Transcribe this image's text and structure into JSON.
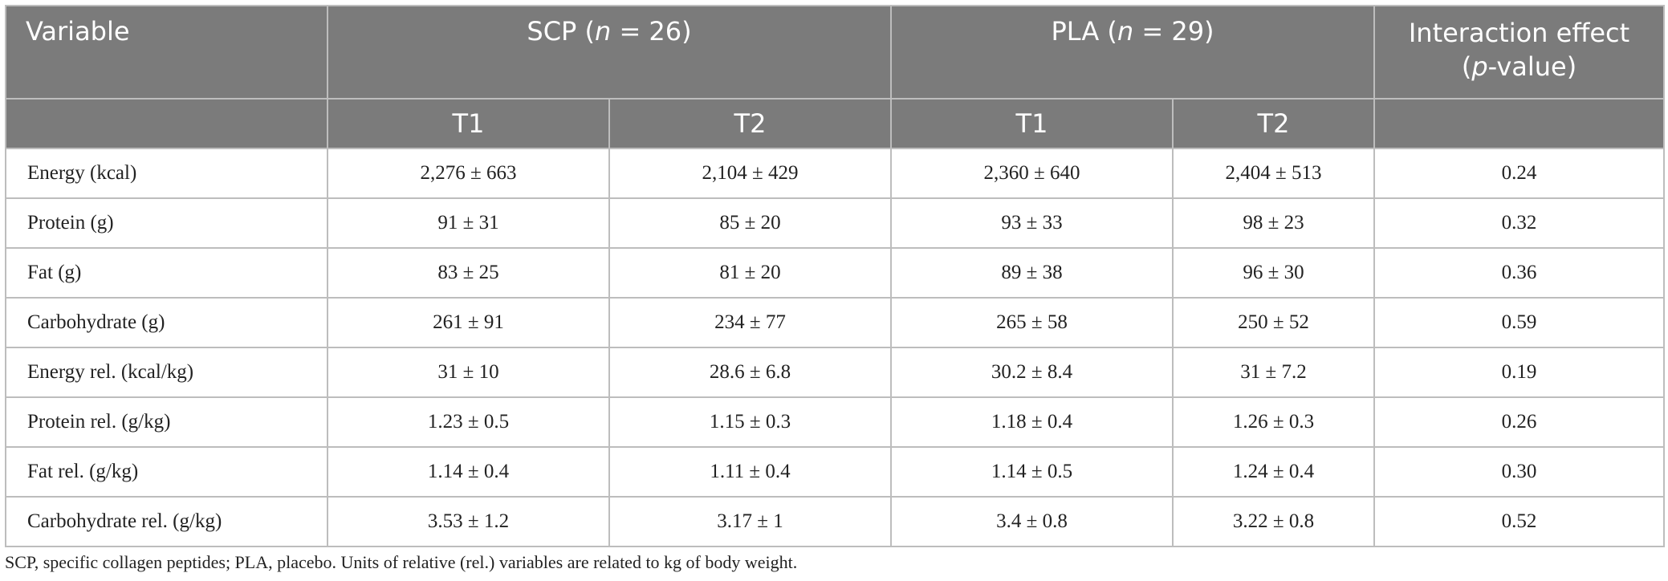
{
  "table": {
    "header": {
      "variable": "Variable",
      "scp_group": "SCP (n = 26)",
      "pla_group": "PLA (n = 29)",
      "interaction_line1": "Interaction effect",
      "interaction_line2": "(p-value)",
      "timepoints": [
        "T1",
        "T2",
        "T1",
        "T2"
      ]
    },
    "rows": [
      {
        "variable": "Energy (kcal)",
        "scp_t1": "2,276 ± 663",
        "scp_t2": "2,104 ± 429",
        "pla_t1": "2,360 ± 640",
        "pla_t2": "2,404 ± 513",
        "p": "0.24"
      },
      {
        "variable": "Protein (g)",
        "scp_t1": "91 ± 31",
        "scp_t2": "85 ± 20",
        "pla_t1": "93 ± 33",
        "pla_t2": "98 ± 23",
        "p": "0.32"
      },
      {
        "variable": "Fat (g)",
        "scp_t1": "83 ± 25",
        "scp_t2": "81 ± 20",
        "pla_t1": "89 ± 38",
        "pla_t2": "96 ± 30",
        "p": "0.36"
      },
      {
        "variable": "Carbohydrate (g)",
        "scp_t1": "261 ± 91",
        "scp_t2": "234 ± 77",
        "pla_t1": "265 ± 58",
        "pla_t2": "250 ± 52",
        "p": "0.59"
      },
      {
        "variable": "Energy rel. (kcal/kg)",
        "scp_t1": "31 ± 10",
        "scp_t2": "28.6 ± 6.8",
        "pla_t1": "30.2 ± 8.4",
        "pla_t2": "31 ± 7.2",
        "p": "0.19"
      },
      {
        "variable": "Protein rel. (g/kg)",
        "scp_t1": "1.23 ± 0.5",
        "scp_t2": "1.15 ± 0.3",
        "pla_t1": "1.18 ± 0.4",
        "pla_t2": "1.26 ± 0.3",
        "p": "0.26"
      },
      {
        "variable": "Fat rel. (g/kg)",
        "scp_t1": "1.14 ± 0.4",
        "scp_t2": "1.11 ± 0.4",
        "pla_t1": "1.14 ± 0.5",
        "pla_t2": "1.24 ± 0.4",
        "p": "0.30"
      },
      {
        "variable": "Carbohydrate rel. (g/kg)",
        "scp_t1": "3.53 ± 1.2",
        "scp_t2": "3.17 ± 1",
        "pla_t1": "3.4 ± 0.8",
        "pla_t2": "3.22 ± 0.8",
        "p": "0.52"
      }
    ]
  },
  "footnote": "SCP, specific collagen peptides; PLA, placebo. Units of relative (rel.) variables are related to kg of body weight.",
  "colors": {
    "header_bg": "#7b7b7b",
    "header_text": "#ffffff",
    "grid": "#bdbdbd"
  }
}
